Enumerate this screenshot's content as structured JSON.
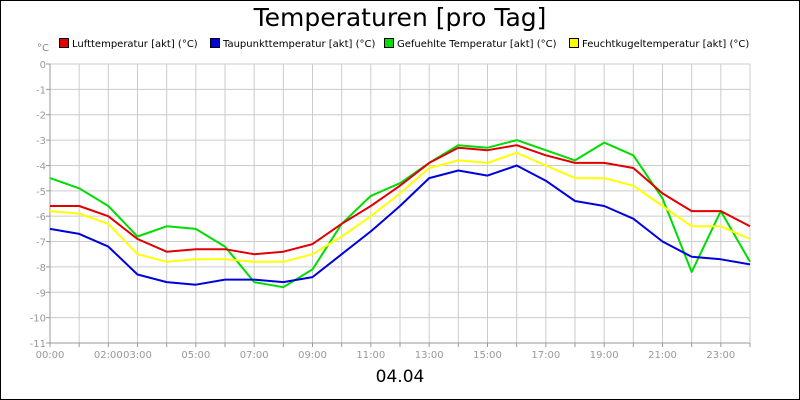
{
  "chart_data": {
    "type": "line",
    "title": "Temperaturen [pro Tag]",
    "xlabel": "04.04",
    "ylabel": "°C",
    "ylim": [
      -11,
      0
    ],
    "xlim": [
      0,
      24
    ],
    "yticks": [
      0,
      -1,
      -2,
      -3,
      -4,
      -5,
      -6,
      -7,
      -8,
      -9,
      -10,
      -11
    ],
    "xticks": [
      {
        "value": 0,
        "label": "00:00"
      },
      {
        "value": 2,
        "label": "02:00"
      },
      {
        "value": 3,
        "label": "03:00"
      },
      {
        "value": 5,
        "label": "05:00"
      },
      {
        "value": 7,
        "label": "07:00"
      },
      {
        "value": 9,
        "label": "09:00"
      },
      {
        "value": 11,
        "label": "11:00"
      },
      {
        "value": 13,
        "label": "13:00"
      },
      {
        "value": 15,
        "label": "15:00"
      },
      {
        "value": 17,
        "label": "17:00"
      },
      {
        "value": 19,
        "label": "19:00"
      },
      {
        "value": 21,
        "label": "21:00"
      },
      {
        "value": 23,
        "label": "23:00"
      }
    ],
    "grid": true,
    "legend_position": "top",
    "series": [
      {
        "name": "Lufttemperatur [akt] (°C)",
        "color": "#e00000",
        "x": [
          0,
          1,
          2,
          3,
          4,
          5,
          6,
          7,
          8,
          9,
          10,
          11,
          12,
          13,
          14,
          15,
          16,
          17,
          18,
          19,
          20,
          21,
          22,
          23,
          24
        ],
        "y": [
          -5.6,
          -5.6,
          -6.0,
          -6.9,
          -7.4,
          -7.3,
          -7.3,
          -7.5,
          -7.4,
          -7.1,
          -6.3,
          -5.6,
          -4.8,
          -3.9,
          -3.3,
          -3.4,
          -3.2,
          -3.6,
          -3.9,
          -3.9,
          -4.1,
          -5.1,
          -5.8,
          -5.8,
          -6.4
        ]
      },
      {
        "name": "Taupunkttemperatur [akt] (°C)",
        "color": "#0000dd",
        "x": [
          0,
          1,
          2,
          3,
          4,
          5,
          6,
          7,
          8,
          9,
          10,
          11,
          12,
          13,
          14,
          15,
          16,
          17,
          18,
          19,
          20,
          21,
          22,
          23,
          24
        ],
        "y": [
          -6.5,
          -6.7,
          -7.2,
          -8.3,
          -8.6,
          -8.7,
          -8.5,
          -8.5,
          -8.6,
          -8.4,
          -7.5,
          -6.6,
          -5.6,
          -4.5,
          -4.2,
          -4.4,
          -4.0,
          -4.6,
          -5.4,
          -5.6,
          -6.1,
          -7.0,
          -7.6,
          -7.7,
          -7.9
        ]
      },
      {
        "name": "Gefuehlte Temperatur [akt] (°C)",
        "color": "#00dd00",
        "x": [
          0,
          1,
          2,
          3,
          4,
          5,
          6,
          7,
          8,
          9,
          10,
          11,
          12,
          13,
          14,
          15,
          16,
          17,
          18,
          19,
          20,
          21,
          22,
          23,
          24
        ],
        "y": [
          -4.5,
          -4.9,
          -5.6,
          -6.8,
          -6.4,
          -6.5,
          -7.2,
          -8.6,
          -8.8,
          -8.1,
          -6.3,
          -5.2,
          -4.7,
          -3.9,
          -3.2,
          -3.3,
          -3.0,
          -3.4,
          -3.8,
          -3.1,
          -3.6,
          -5.3,
          -8.2,
          -5.8,
          -7.8
        ]
      },
      {
        "name": "Feuchtkugeltemperatur [akt] (°C)",
        "color": "#ffff00",
        "x": [
          0,
          1,
          2,
          3,
          4,
          5,
          6,
          7,
          8,
          9,
          10,
          11,
          12,
          13,
          14,
          15,
          16,
          17,
          18,
          19,
          20,
          21,
          22,
          23,
          24
        ],
        "y": [
          -5.8,
          -5.9,
          -6.3,
          -7.5,
          -7.8,
          -7.7,
          -7.7,
          -7.8,
          -7.8,
          -7.5,
          -6.8,
          -6.0,
          -5.1,
          -4.1,
          -3.8,
          -3.9,
          -3.5,
          -4.0,
          -4.5,
          -4.5,
          -4.8,
          -5.6,
          -6.4,
          -6.4,
          -6.9
        ]
      }
    ]
  }
}
